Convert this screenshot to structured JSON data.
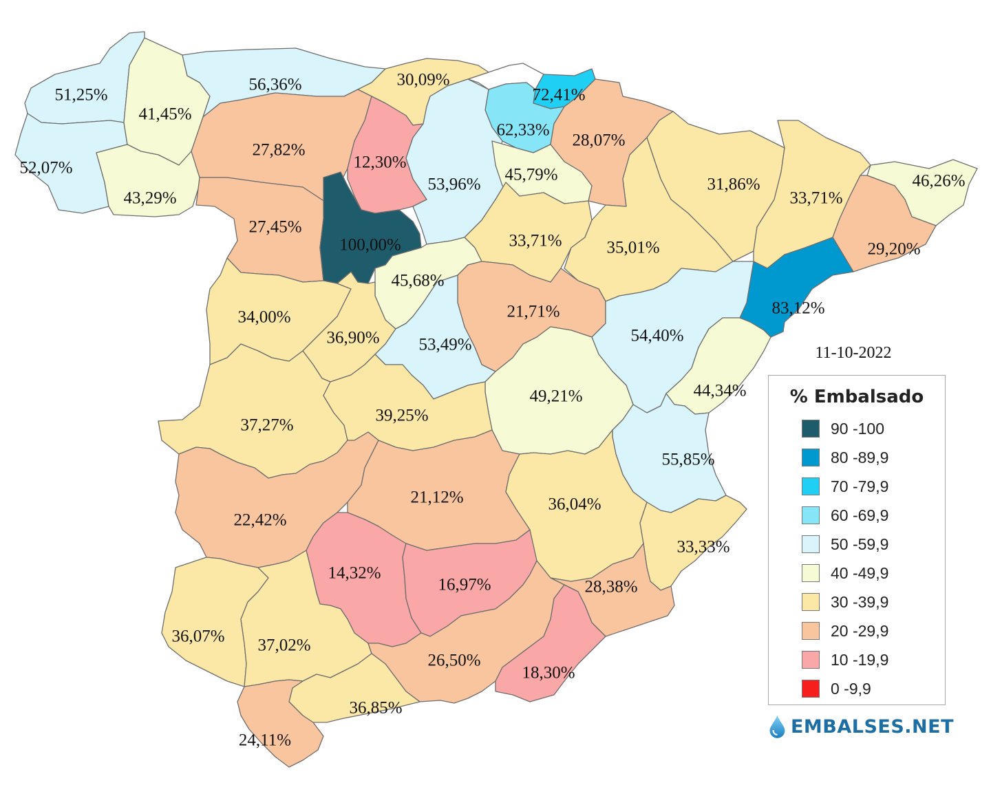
{
  "date": "11-10-2022",
  "legend": {
    "title": "% Embalsado",
    "items": [
      {
        "label": "90 -100",
        "color": "#1e5b6b"
      },
      {
        "label": "80 -89,9",
        "color": "#0099cf"
      },
      {
        "label": "70 -79,9",
        "color": "#20d0f4"
      },
      {
        "label": "60 -69,9",
        "color": "#86e6f8"
      },
      {
        "label": "50 -59,9",
        "color": "#d9f4fb"
      },
      {
        "label": "40 -49,9",
        "color": "#f6fbd5"
      },
      {
        "label": "30 -39,9",
        "color": "#fbe8a6"
      },
      {
        "label": "20 -29,9",
        "color": "#f9c59f"
      },
      {
        "label": "10 -19,9",
        "color": "#f9a7a7"
      },
      {
        "label": "0 -9,9",
        "color": "#f71e1e"
      }
    ]
  },
  "brand": {
    "name": "EMBALSES.NET",
    "icon": "water-drop-icon"
  },
  "regions": [
    {
      "id": "galicia-nw",
      "label": "51,25%",
      "value": 51.25
    },
    {
      "id": "galicia-sw",
      "label": "52,07%",
      "value": 52.07
    },
    {
      "id": "galicia-ne",
      "label": "41,45%",
      "value": 41.45
    },
    {
      "id": "galicia-se",
      "label": "43,29%",
      "value": 43.29
    },
    {
      "id": "asturias",
      "label": "56,36%",
      "value": 56.36
    },
    {
      "id": "cantabria",
      "label": "30,09%",
      "value": 30.09
    },
    {
      "id": "pais-vasco-coast",
      "label": "72,41%",
      "value": 72.41
    },
    {
      "id": "pais-vasco-inland",
      "label": "62,33%",
      "value": 62.33
    },
    {
      "id": "navarra",
      "label": "28,07%",
      "value": 28.07
    },
    {
      "id": "leon",
      "label": "27,82%",
      "value": 27.82
    },
    {
      "id": "palencia",
      "label": "12,30%",
      "value": 12.3
    },
    {
      "id": "burgos",
      "label": "53,96%",
      "value": 53.96
    },
    {
      "id": "la-rioja",
      "label": "45,79%",
      "value": 45.79
    },
    {
      "id": "zamora",
      "label": "27,45%",
      "value": 27.45
    },
    {
      "id": "valladolid",
      "label": "100,00%",
      "value": 100.0
    },
    {
      "id": "soria",
      "label": "33,71%",
      "value": 33.71
    },
    {
      "id": "huesca-zaragoza-n",
      "label": "31,86%",
      "value": 31.86
    },
    {
      "id": "zaragoza",
      "label": "35,01%",
      "value": 35.01
    },
    {
      "id": "lleida",
      "label": "33,71%",
      "value": 33.71
    },
    {
      "id": "girona",
      "label": "46,26%",
      "value": 46.26
    },
    {
      "id": "barcelona",
      "label": "29,20%",
      "value": 29.2
    },
    {
      "id": "tarragona",
      "label": "83,12%",
      "value": 83.12
    },
    {
      "id": "segovia",
      "label": "45,68%",
      "value": 45.68
    },
    {
      "id": "guadalajara",
      "label": "21,71%",
      "value": 21.71
    },
    {
      "id": "teruel",
      "label": "54,40%",
      "value": 54.4
    },
    {
      "id": "salamanca",
      "label": "34,00%",
      "value": 34.0
    },
    {
      "id": "avila",
      "label": "36,90%",
      "value": 36.9
    },
    {
      "id": "madrid",
      "label": "53,49%",
      "value": 53.49
    },
    {
      "id": "cuenca",
      "label": "49,21%",
      "value": 49.21
    },
    {
      "id": "castellon",
      "label": "44,34%",
      "value": 44.34
    },
    {
      "id": "caceres",
      "label": "37,27%",
      "value": 37.27
    },
    {
      "id": "toledo",
      "label": "39,25%",
      "value": 39.25
    },
    {
      "id": "valencia",
      "label": "55,85%",
      "value": 55.85
    },
    {
      "id": "badajoz",
      "label": "22,42%",
      "value": 22.42
    },
    {
      "id": "ciudad-real",
      "label": "21,12%",
      "value": 21.12
    },
    {
      "id": "albacete",
      "label": "36,04%",
      "value": 36.04
    },
    {
      "id": "alicante",
      "label": "33,33%",
      "value": 33.33
    },
    {
      "id": "cordoba",
      "label": "14,32%",
      "value": 14.32
    },
    {
      "id": "jaen",
      "label": "16,97%",
      "value": 16.97
    },
    {
      "id": "murcia",
      "label": "28,38%",
      "value": 28.38
    },
    {
      "id": "huelva",
      "label": "36,07%",
      "value": 36.07
    },
    {
      "id": "sevilla",
      "label": "37,02%",
      "value": 37.02
    },
    {
      "id": "granada",
      "label": "26,50%",
      "value": 26.5
    },
    {
      "id": "almeria",
      "label": "18,30%",
      "value": 18.3
    },
    {
      "id": "malaga",
      "label": "36,85%",
      "value": 36.85
    },
    {
      "id": "cadiz",
      "label": "24,11%",
      "value": 24.11
    }
  ]
}
